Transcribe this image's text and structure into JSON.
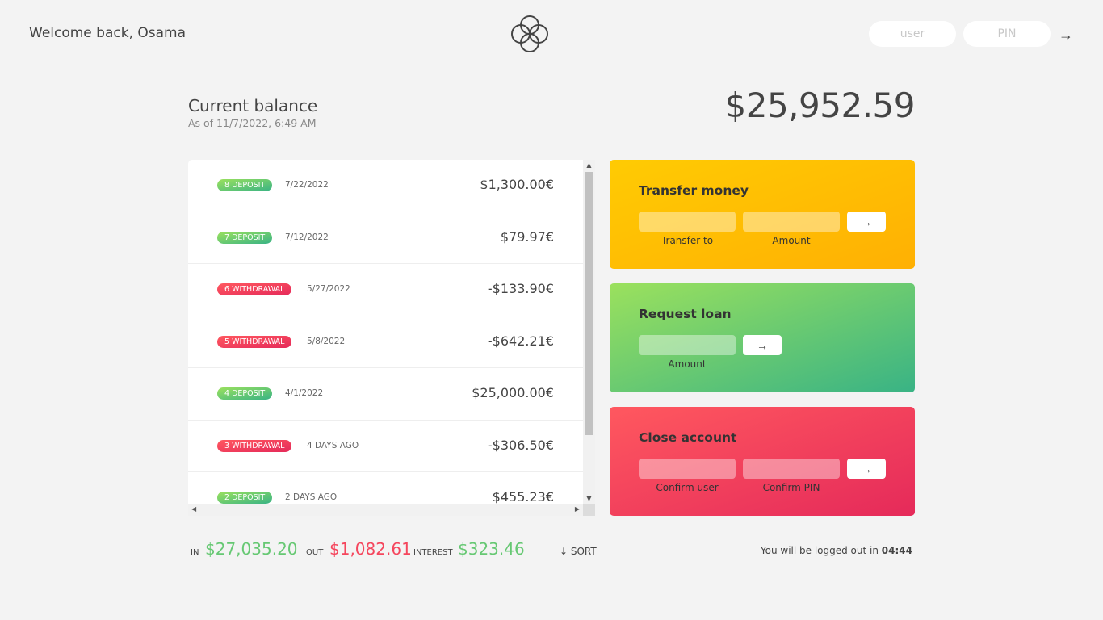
{
  "nav": {
    "welcome": "Welcome back, Osama",
    "user_placeholder": "user",
    "pin_placeholder": "PIN",
    "login_button": "→"
  },
  "balance": {
    "label": "Current balance",
    "date_prefix": "As of",
    "date": "11/7/2022, 6:49 AM",
    "date_full": "As of 11/7/2022, 6:49 AM",
    "value": "$25,952.59"
  },
  "movements": [
    {
      "type": "deposit",
      "label": "8 deposit",
      "date": "7/22/2022",
      "value": "$1,300.00€"
    },
    {
      "type": "deposit",
      "label": "7 deposit",
      "date": "7/12/2022",
      "value": "$79.97€"
    },
    {
      "type": "withdrawal",
      "label": "6 withdrawal",
      "date": "5/27/2022",
      "value": "-$133.90€"
    },
    {
      "type": "withdrawal",
      "label": "5 withdrawal",
      "date": "5/8/2022",
      "value": "-$642.21€"
    },
    {
      "type": "deposit",
      "label": "4 deposit",
      "date": "4/1/2022",
      "value": "$25,000.00€"
    },
    {
      "type": "withdrawal",
      "label": "3 withdrawal",
      "date": "4 DAYS AGO",
      "value": "-$306.50€"
    },
    {
      "type": "deposit",
      "label": "2 deposit",
      "date": "2 DAYS AGO",
      "value": "$455.23€"
    }
  ],
  "operations": {
    "transfer": {
      "title": "Transfer money",
      "to_label": "Transfer to",
      "amount_label": "Amount",
      "button": "→"
    },
    "loan": {
      "title": "Request loan",
      "amount_label": "Amount",
      "button": "→"
    },
    "close": {
      "title": "Close account",
      "user_label": "Confirm user",
      "pin_label": "Confirm PIN",
      "button": "→"
    }
  },
  "summary": {
    "in_label": "In",
    "in_value": "$27,035.20",
    "out_label": "Out",
    "out_value": "$1,082.61",
    "interest_label": "Interest",
    "interest_value": "$323.46",
    "sort_label": "↓ SORT"
  },
  "logout": {
    "text": "You will be logged out in",
    "time": "04:44"
  },
  "colors": {
    "deposit": "#39b385",
    "withdrawal": "#e52a5a",
    "transfer": "#ffcb03",
    "loan": "#9be15d",
    "close": "#ff585f"
  }
}
